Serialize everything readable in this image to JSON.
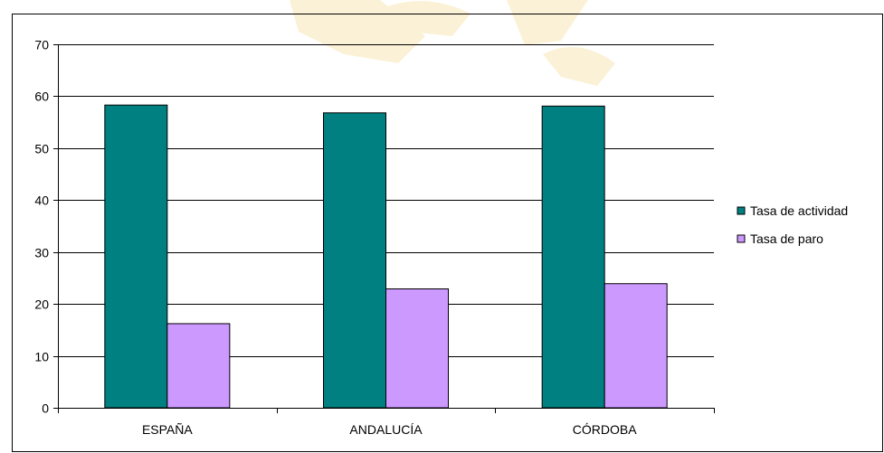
{
  "chart_data": {
    "type": "bar",
    "categories": [
      "ESPAÑA",
      "ANDALUCÍA",
      "CÓRDOBA"
    ],
    "series": [
      {
        "name": "Tasa de actividad",
        "values": [
          58.3,
          56.8,
          58.1
        ],
        "color": "#008080"
      },
      {
        "name": "Tasa de paro",
        "values": [
          16.2,
          22.9,
          23.9
        ],
        "color": "#cc99ff"
      }
    ],
    "ylim": [
      0,
      70
    ],
    "yticks": [
      0,
      10,
      20,
      30,
      40,
      50,
      60,
      70
    ],
    "grid": true,
    "legend_position": "right",
    "title": "",
    "xlabel": "",
    "ylabel": ""
  },
  "colors": {
    "watermark": "#fbf1d6",
    "frame": "#000000",
    "gridline": "#000000"
  }
}
